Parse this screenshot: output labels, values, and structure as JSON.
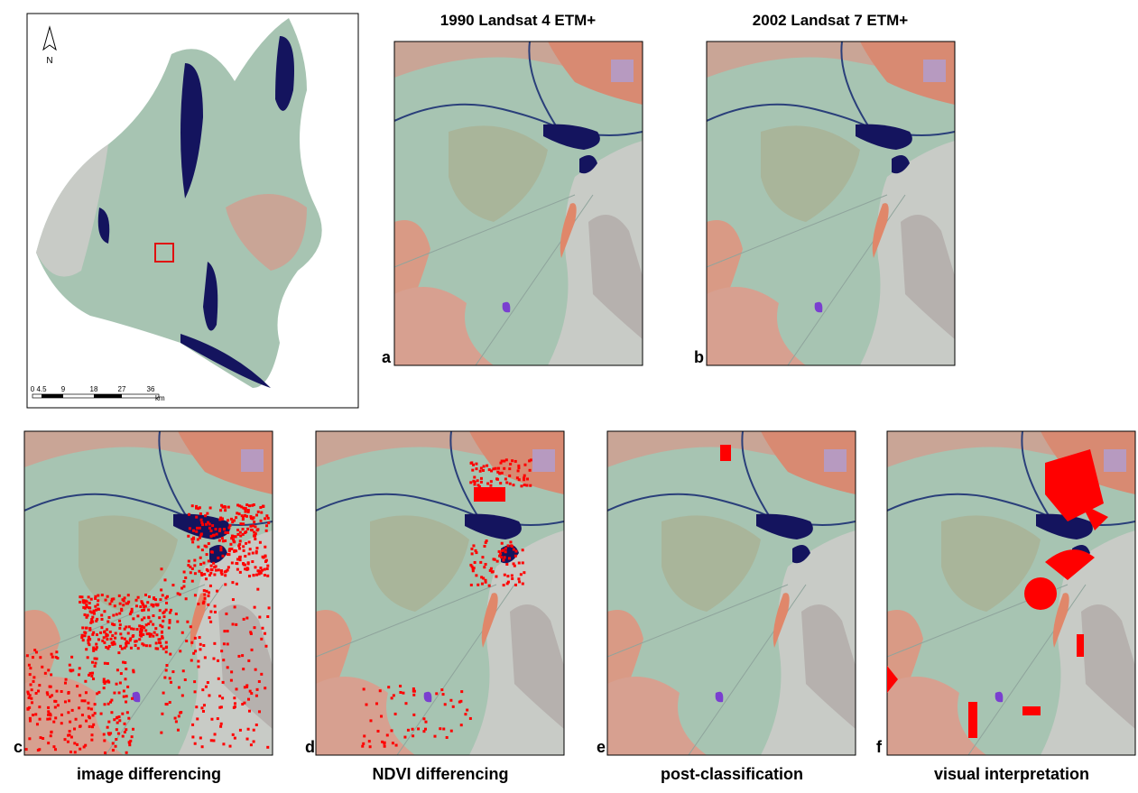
{
  "overview": {
    "north_label": "N",
    "scale_labels": [
      "0",
      "4.5",
      "9",
      "18",
      "27",
      "36"
    ],
    "scale_unit": "km"
  },
  "top_panels": [
    {
      "letter": "a",
      "title": "1990 Landsat 4 ETM+"
    },
    {
      "letter": "b",
      "title": "2002 Landsat 7 ETM+"
    }
  ],
  "bottom_panels": [
    {
      "letter": "c",
      "caption": "image differencing"
    },
    {
      "letter": "d",
      "caption": "NDVI differencing"
    },
    {
      "letter": "e",
      "caption": "post-classification"
    },
    {
      "letter": "f",
      "caption": "visual interpretation"
    }
  ]
}
